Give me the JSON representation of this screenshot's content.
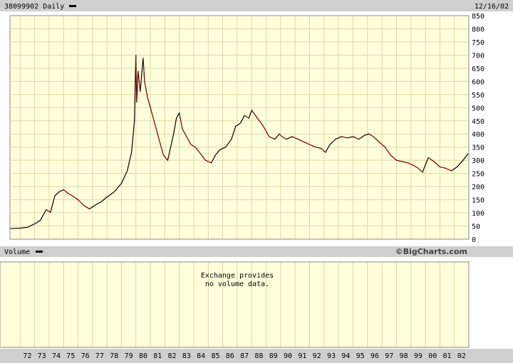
{
  "header": {
    "symbol_label": "38099902 Daily",
    "date": "12/16/02"
  },
  "volume_panel": {
    "label": "Volume",
    "watermark": "©BigCharts.com",
    "no_data_line1": "Exchange provides",
    "no_data_line2": "no volume data."
  },
  "colors": {
    "background": "#ffffff",
    "plot_bg": "#ffffdc",
    "grid": "#d8d8a8",
    "bar_gray": "#cfcfcf",
    "price_line": "#000000",
    "price_down": "#b00000"
  },
  "chart_data": {
    "type": "line",
    "x_tick_labels": [
      "72",
      "73",
      "74",
      "75",
      "76",
      "77",
      "78",
      "79",
      "80",
      "81",
      "82",
      "83",
      "84",
      "85",
      "86",
      "87",
      "88",
      "89",
      "90",
      "91",
      "92",
      "93",
      "94",
      "95",
      "96",
      "97",
      "98",
      "99",
      "00",
      "01",
      "02"
    ],
    "y_tick_labels": [
      "850",
      "800",
      "750",
      "700",
      "650",
      "600",
      "550",
      "500",
      "450",
      "400",
      "350",
      "300",
      "250",
      "200",
      "150",
      "100",
      "50",
      "0"
    ],
    "ylim": [
      0,
      850
    ],
    "xlim": [
      1971.3,
      2003.0
    ],
    "grid": true,
    "series": [
      {
        "x": [
          1971.3,
          1972.0,
          1972.5,
          1973.0,
          1973.4,
          1973.8,
          1974.1,
          1974.4,
          1974.7,
          1975.0,
          1975.3,
          1975.6,
          1976.0,
          1976.4,
          1976.8,
          1977.2,
          1977.6,
          1978.0,
          1978.5,
          1979.0,
          1979.4,
          1979.7,
          1979.9,
          1980.0,
          1980.05,
          1980.15,
          1980.3,
          1980.5,
          1980.6,
          1980.8,
          1981.0,
          1981.3,
          1981.6,
          1981.9,
          1982.2,
          1982.4,
          1982.6,
          1982.8,
          1983.0,
          1983.2,
          1983.5,
          1983.8,
          1984.1,
          1984.4,
          1984.8,
          1985.2,
          1985.5,
          1985.8,
          1986.2,
          1986.6,
          1986.9,
          1987.2,
          1987.5,
          1987.8,
          1988.0,
          1988.4,
          1988.8,
          1989.2,
          1989.6,
          1989.9,
          1990.1,
          1990.4,
          1990.8,
          1991.2,
          1991.6,
          1992.0,
          1992.4,
          1992.8,
          1993.1,
          1993.4,
          1993.8,
          1994.2,
          1994.6,
          1995.0,
          1995.4,
          1995.8,
          1996.1,
          1996.4,
          1996.8,
          1997.2,
          1997.6,
          1998.0,
          1998.4,
          1998.8,
          1999.2,
          1999.5,
          1999.8,
          2000.2,
          2000.6,
          2001.0,
          2001.4,
          2001.8,
          2002.2,
          2002.6,
          2002.95
        ],
        "y": [
          40,
          42,
          45,
          58,
          72,
          112,
          102,
          165,
          180,
          188,
          175,
          165,
          150,
          128,
          115,
          130,
          142,
          160,
          180,
          212,
          260,
          330,
          450,
          700,
          520,
          640,
          560,
          690,
          600,
          540,
          500,
          440,
          380,
          320,
          300,
          350,
          400,
          460,
          480,
          420,
          390,
          360,
          350,
          330,
          300,
          290,
          320,
          340,
          350,
          380,
          430,
          440,
          470,
          460,
          490,
          460,
          430,
          390,
          380,
          400,
          390,
          380,
          390,
          380,
          370,
          360,
          350,
          345,
          330,
          360,
          380,
          390,
          385,
          390,
          380,
          395,
          400,
          390,
          370,
          350,
          320,
          300,
          295,
          290,
          280,
          270,
          255,
          310,
          295,
          275,
          270,
          260,
          275,
          300,
          325
        ]
      }
    ]
  }
}
